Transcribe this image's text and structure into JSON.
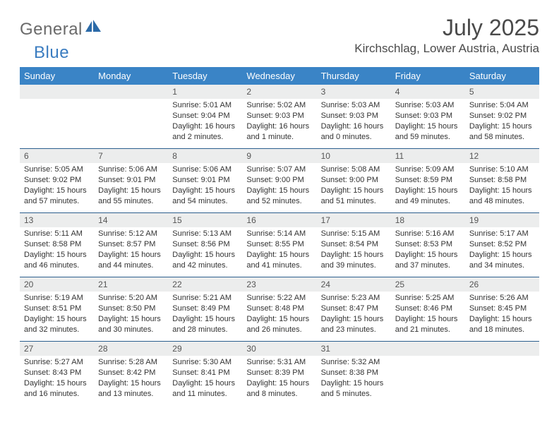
{
  "logo": {
    "word1": "General",
    "word2": "Blue"
  },
  "title": {
    "month": "July 2025",
    "location": "Kirchschlag, Lower Austria, Austria"
  },
  "colors": {
    "header_bg": "#3a84c6",
    "header_text": "#ffffff",
    "daynum_bg": "#eceded",
    "row_border": "#2c5f8e",
    "logo_gray": "#6a6a6a",
    "logo_blue": "#3a7cc0",
    "page_bg": "#ffffff"
  },
  "day_names": [
    "Sunday",
    "Monday",
    "Tuesday",
    "Wednesday",
    "Thursday",
    "Friday",
    "Saturday"
  ],
  "weeks": [
    [
      {
        "num": "",
        "lines": [
          "",
          "",
          "",
          ""
        ]
      },
      {
        "num": "",
        "lines": [
          "",
          "",
          "",
          ""
        ]
      },
      {
        "num": "1",
        "lines": [
          "Sunrise: 5:01 AM",
          "Sunset: 9:04 PM",
          "Daylight: 16 hours",
          "and 2 minutes."
        ]
      },
      {
        "num": "2",
        "lines": [
          "Sunrise: 5:02 AM",
          "Sunset: 9:03 PM",
          "Daylight: 16 hours",
          "and 1 minute."
        ]
      },
      {
        "num": "3",
        "lines": [
          "Sunrise: 5:03 AM",
          "Sunset: 9:03 PM",
          "Daylight: 16 hours",
          "and 0 minutes."
        ]
      },
      {
        "num": "4",
        "lines": [
          "Sunrise: 5:03 AM",
          "Sunset: 9:03 PM",
          "Daylight: 15 hours",
          "and 59 minutes."
        ]
      },
      {
        "num": "5",
        "lines": [
          "Sunrise: 5:04 AM",
          "Sunset: 9:02 PM",
          "Daylight: 15 hours",
          "and 58 minutes."
        ]
      }
    ],
    [
      {
        "num": "6",
        "lines": [
          "Sunrise: 5:05 AM",
          "Sunset: 9:02 PM",
          "Daylight: 15 hours",
          "and 57 minutes."
        ]
      },
      {
        "num": "7",
        "lines": [
          "Sunrise: 5:06 AM",
          "Sunset: 9:01 PM",
          "Daylight: 15 hours",
          "and 55 minutes."
        ]
      },
      {
        "num": "8",
        "lines": [
          "Sunrise: 5:06 AM",
          "Sunset: 9:01 PM",
          "Daylight: 15 hours",
          "and 54 minutes."
        ]
      },
      {
        "num": "9",
        "lines": [
          "Sunrise: 5:07 AM",
          "Sunset: 9:00 PM",
          "Daylight: 15 hours",
          "and 52 minutes."
        ]
      },
      {
        "num": "10",
        "lines": [
          "Sunrise: 5:08 AM",
          "Sunset: 9:00 PM",
          "Daylight: 15 hours",
          "and 51 minutes."
        ]
      },
      {
        "num": "11",
        "lines": [
          "Sunrise: 5:09 AM",
          "Sunset: 8:59 PM",
          "Daylight: 15 hours",
          "and 49 minutes."
        ]
      },
      {
        "num": "12",
        "lines": [
          "Sunrise: 5:10 AM",
          "Sunset: 8:58 PM",
          "Daylight: 15 hours",
          "and 48 minutes."
        ]
      }
    ],
    [
      {
        "num": "13",
        "lines": [
          "Sunrise: 5:11 AM",
          "Sunset: 8:58 PM",
          "Daylight: 15 hours",
          "and 46 minutes."
        ]
      },
      {
        "num": "14",
        "lines": [
          "Sunrise: 5:12 AM",
          "Sunset: 8:57 PM",
          "Daylight: 15 hours",
          "and 44 minutes."
        ]
      },
      {
        "num": "15",
        "lines": [
          "Sunrise: 5:13 AM",
          "Sunset: 8:56 PM",
          "Daylight: 15 hours",
          "and 42 minutes."
        ]
      },
      {
        "num": "16",
        "lines": [
          "Sunrise: 5:14 AM",
          "Sunset: 8:55 PM",
          "Daylight: 15 hours",
          "and 41 minutes."
        ]
      },
      {
        "num": "17",
        "lines": [
          "Sunrise: 5:15 AM",
          "Sunset: 8:54 PM",
          "Daylight: 15 hours",
          "and 39 minutes."
        ]
      },
      {
        "num": "18",
        "lines": [
          "Sunrise: 5:16 AM",
          "Sunset: 8:53 PM",
          "Daylight: 15 hours",
          "and 37 minutes."
        ]
      },
      {
        "num": "19",
        "lines": [
          "Sunrise: 5:17 AM",
          "Sunset: 8:52 PM",
          "Daylight: 15 hours",
          "and 34 minutes."
        ]
      }
    ],
    [
      {
        "num": "20",
        "lines": [
          "Sunrise: 5:19 AM",
          "Sunset: 8:51 PM",
          "Daylight: 15 hours",
          "and 32 minutes."
        ]
      },
      {
        "num": "21",
        "lines": [
          "Sunrise: 5:20 AM",
          "Sunset: 8:50 PM",
          "Daylight: 15 hours",
          "and 30 minutes."
        ]
      },
      {
        "num": "22",
        "lines": [
          "Sunrise: 5:21 AM",
          "Sunset: 8:49 PM",
          "Daylight: 15 hours",
          "and 28 minutes."
        ]
      },
      {
        "num": "23",
        "lines": [
          "Sunrise: 5:22 AM",
          "Sunset: 8:48 PM",
          "Daylight: 15 hours",
          "and 26 minutes."
        ]
      },
      {
        "num": "24",
        "lines": [
          "Sunrise: 5:23 AM",
          "Sunset: 8:47 PM",
          "Daylight: 15 hours",
          "and 23 minutes."
        ]
      },
      {
        "num": "25",
        "lines": [
          "Sunrise: 5:25 AM",
          "Sunset: 8:46 PM",
          "Daylight: 15 hours",
          "and 21 minutes."
        ]
      },
      {
        "num": "26",
        "lines": [
          "Sunrise: 5:26 AM",
          "Sunset: 8:45 PM",
          "Daylight: 15 hours",
          "and 18 minutes."
        ]
      }
    ],
    [
      {
        "num": "27",
        "lines": [
          "Sunrise: 5:27 AM",
          "Sunset: 8:43 PM",
          "Daylight: 15 hours",
          "and 16 minutes."
        ]
      },
      {
        "num": "28",
        "lines": [
          "Sunrise: 5:28 AM",
          "Sunset: 8:42 PM",
          "Daylight: 15 hours",
          "and 13 minutes."
        ]
      },
      {
        "num": "29",
        "lines": [
          "Sunrise: 5:30 AM",
          "Sunset: 8:41 PM",
          "Daylight: 15 hours",
          "and 11 minutes."
        ]
      },
      {
        "num": "30",
        "lines": [
          "Sunrise: 5:31 AM",
          "Sunset: 8:39 PM",
          "Daylight: 15 hours",
          "and 8 minutes."
        ]
      },
      {
        "num": "31",
        "lines": [
          "Sunrise: 5:32 AM",
          "Sunset: 8:38 PM",
          "Daylight: 15 hours",
          "and 5 minutes."
        ]
      },
      {
        "num": "",
        "lines": [
          "",
          "",
          "",
          ""
        ]
      },
      {
        "num": "",
        "lines": [
          "",
          "",
          "",
          ""
        ]
      }
    ]
  ]
}
